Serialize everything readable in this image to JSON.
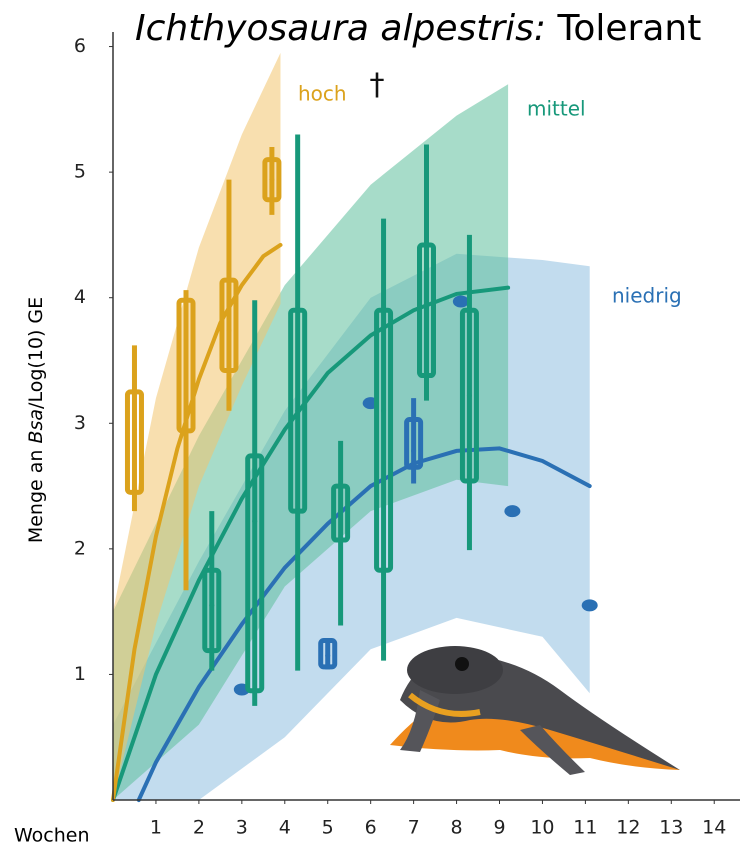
{
  "chart_data": {
    "type": "box",
    "title": [
      "Ichthyosaura alpestris:",
      "Tolerant"
    ],
    "ylabel": [
      "Menge an ",
      "Bsa",
      "/Log(10) GE"
    ],
    "xlabel": "Wochen",
    "annotation": "†",
    "xlim": [
      0,
      14.6
    ],
    "ylim": [
      0,
      6.1
    ],
    "xticks": [
      1,
      2,
      3,
      4,
      5,
      6,
      7,
      8,
      9,
      10,
      11,
      12,
      13,
      14
    ],
    "yticks": [
      1,
      2,
      3,
      4,
      5,
      6
    ],
    "series": [
      {
        "name": "niedrig",
        "color": "#2a70b4",
        "band_color": "#8fbfe0",
        "boxes": [
          {
            "x": 5.0,
            "low": 1.04,
            "q1": 1.06,
            "median": 1.15,
            "q3": 1.27,
            "high": 1.29
          },
          {
            "x": 7.0,
            "low": 2.52,
            "q1": 2.65,
            "median": 2.78,
            "q3": 3.03,
            "high": 3.2
          }
        ],
        "points": [
          {
            "x": 3.0,
            "y": 0.88
          },
          {
            "x": 6.0,
            "y": 3.16
          },
          {
            "x": 8.1,
            "y": 3.97
          },
          {
            "x": 9.3,
            "y": 2.3
          },
          {
            "x": 11.1,
            "y": 1.55
          }
        ],
        "fit": {
          "x": [
            0.6,
            1,
            2,
            3,
            4,
            5,
            6,
            7,
            8,
            9,
            10,
            11.1
          ],
          "y": [
            0,
            0.3,
            0.9,
            1.4,
            1.85,
            2.2,
            2.5,
            2.68,
            2.78,
            2.8,
            2.7,
            2.5
          ]
        },
        "band": {
          "x": [
            0,
            2,
            4,
            6,
            8,
            10,
            11.1
          ],
          "upper": [
            0.6,
            1.9,
            3.1,
            4.0,
            4.35,
            4.3,
            4.25
          ],
          "lower": [
            0,
            0,
            0.5,
            1.2,
            1.45,
            1.3,
            0.85
          ]
        }
      },
      {
        "name": "mittel",
        "color": "#17987a",
        "band_color": "#5fbf9c",
        "boxes": [
          {
            "x": 2.3,
            "low": 1.03,
            "q1": 1.19,
            "median": 1.55,
            "q3": 1.83,
            "high": 2.3
          },
          {
            "x": 3.3,
            "low": 0.75,
            "q1": 0.87,
            "median": 2.22,
            "q3": 2.74,
            "high": 3.98
          },
          {
            "x": 4.3,
            "low": 1.03,
            "q1": 2.3,
            "median": 3.1,
            "q3": 3.9,
            "high": 5.3
          },
          {
            "x": 5.3,
            "low": 1.39,
            "q1": 2.07,
            "median": 2.3,
            "q3": 2.5,
            "high": 2.86
          },
          {
            "x": 6.3,
            "low": 1.11,
            "q1": 1.83,
            "median": 3.1,
            "q3": 3.9,
            "high": 4.63
          },
          {
            "x": 7.3,
            "low": 3.18,
            "q1": 3.38,
            "median": 3.74,
            "q3": 4.42,
            "high": 5.22
          },
          {
            "x": 8.3,
            "low": 1.99,
            "q1": 2.54,
            "median": 3.22,
            "q3": 3.9,
            "high": 4.5
          }
        ],
        "points": [],
        "fit": {
          "x": [
            0,
            1,
            2,
            3,
            4,
            5,
            6,
            7,
            8,
            9.2
          ],
          "y": [
            0,
            1.0,
            1.75,
            2.4,
            2.95,
            3.4,
            3.7,
            3.9,
            4.03,
            4.08
          ]
        },
        "band": {
          "x": [
            0,
            2,
            4,
            6,
            8,
            9.2
          ],
          "upper": [
            1.5,
            2.9,
            4.1,
            4.9,
            5.45,
            5.7
          ],
          "lower": [
            0,
            0.6,
            1.7,
            2.3,
            2.55,
            2.5
          ]
        }
      },
      {
        "name": "hoch",
        "color": "#dba21c",
        "band_color": "#f2c46e",
        "boxes": [
          {
            "x": 0.5,
            "low": 2.3,
            "q1": 2.45,
            "median": 2.95,
            "q3": 3.25,
            "high": 3.62
          },
          {
            "x": 1.7,
            "low": 1.67,
            "q1": 2.94,
            "median": 3.66,
            "q3": 3.98,
            "high": 4.06
          },
          {
            "x": 2.7,
            "low": 3.1,
            "q1": 3.42,
            "median": 3.74,
            "q3": 4.14,
            "high": 4.94
          },
          {
            "x": 3.7,
            "low": 4.66,
            "q1": 4.78,
            "median": 4.94,
            "q3": 5.1,
            "high": 5.2
          }
        ],
        "points": [],
        "fit": {
          "x": [
            0,
            0.5,
            1,
            1.5,
            2,
            2.5,
            3,
            3.5,
            3.9
          ],
          "y": [
            0,
            1.2,
            2.1,
            2.8,
            3.35,
            3.8,
            4.1,
            4.33,
            4.42
          ]
        },
        "band": {
          "x": [
            0,
            1,
            2,
            3,
            3.9
          ],
          "upper": [
            1.5,
            3.2,
            4.4,
            5.3,
            5.95
          ],
          "lower": [
            0,
            1.4,
            2.5,
            3.3,
            3.95
          ]
        }
      }
    ]
  }
}
